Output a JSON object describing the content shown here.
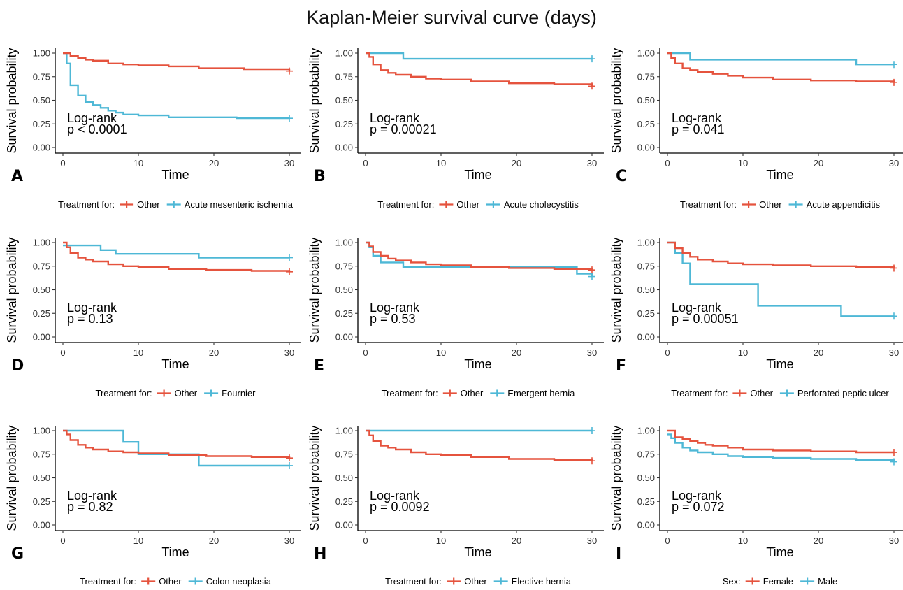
{
  "title": "Kaplan-Meier survival curve (days)",
  "colors": {
    "Other": "#E5533E",
    "secondary": "#4EB8D6",
    "axis": "#000000"
  },
  "chart_data": [
    {
      "type": "line",
      "panel": "A",
      "xlabel": "Time",
      "ylabel": "Survival probability",
      "xlim": [
        0,
        30
      ],
      "ylim": [
        0,
        1
      ],
      "xticks": [
        "0",
        "10",
        "20",
        "30"
      ],
      "yticks": [
        "0.00",
        "0.25",
        "0.50",
        "0.75",
        "1.00"
      ],
      "grid": false,
      "legend_position": "bottom",
      "legend_title": "Treatment for:",
      "annotation": [
        "Log-rank",
        "p < 0.0001"
      ],
      "series": [
        {
          "name": "Other",
          "color": "#E5533E",
          "x": [
            0,
            1,
            2,
            3,
            4,
            6,
            8,
            10,
            14,
            18,
            24,
            30
          ],
          "y": [
            1.0,
            0.97,
            0.95,
            0.93,
            0.92,
            0.89,
            0.88,
            0.87,
            0.86,
            0.84,
            0.83,
            0.81
          ]
        },
        {
          "name": "Acute mesenteric ischemia",
          "color": "#4EB8D6",
          "x": [
            0,
            0.5,
            1,
            2,
            3,
            4,
            5,
            6,
            7,
            8,
            10,
            14,
            23,
            30
          ],
          "y": [
            1.0,
            0.89,
            0.66,
            0.55,
            0.48,
            0.45,
            0.42,
            0.39,
            0.37,
            0.35,
            0.34,
            0.32,
            0.31,
            0.31
          ]
        }
      ]
    },
    {
      "type": "line",
      "panel": "B",
      "xlabel": "Time",
      "ylabel": "Survival probability",
      "xlim": [
        0,
        30
      ],
      "ylim": [
        0,
        1
      ],
      "xticks": [
        "0",
        "10",
        "20",
        "30"
      ],
      "yticks": [
        "0.00",
        "0.25",
        "0.50",
        "0.75",
        "1.00"
      ],
      "grid": false,
      "legend_position": "bottom",
      "legend_title": "Treatment for:",
      "annotation": [
        "Log-rank",
        "p = 0.00021"
      ],
      "series": [
        {
          "name": "Other",
          "color": "#E5533E",
          "x": [
            0,
            0.5,
            1,
            2,
            3,
            4,
            6,
            8,
            10,
            14,
            19,
            25,
            30
          ],
          "y": [
            1.0,
            0.96,
            0.88,
            0.82,
            0.79,
            0.77,
            0.75,
            0.73,
            0.72,
            0.7,
            0.68,
            0.67,
            0.65
          ]
        },
        {
          "name": "Acute cholecystitis",
          "color": "#4EB8D6",
          "x": [
            0,
            5,
            30
          ],
          "y": [
            1.0,
            0.94,
            0.94
          ]
        }
      ]
    },
    {
      "type": "line",
      "panel": "C",
      "xlabel": "Time",
      "ylabel": "Survival probability",
      "xlim": [
        0,
        30
      ],
      "ylim": [
        0,
        1
      ],
      "xticks": [
        "0",
        "10",
        "20",
        "30"
      ],
      "yticks": [
        "0.00",
        "0.25",
        "0.50",
        "0.75",
        "1.00"
      ],
      "grid": false,
      "legend_position": "bottom",
      "legend_title": "Treatment for:",
      "annotation": [
        "Log-rank",
        "p = 0.041"
      ],
      "series": [
        {
          "name": "Other",
          "color": "#E5533E",
          "x": [
            0,
            0.5,
            1,
            2,
            3,
            4,
            6,
            8,
            10,
            14,
            19,
            25,
            30
          ],
          "y": [
            1.0,
            0.95,
            0.89,
            0.84,
            0.82,
            0.8,
            0.78,
            0.76,
            0.74,
            0.72,
            0.71,
            0.7,
            0.69
          ]
        },
        {
          "name": "Acute appendicitis",
          "color": "#4EB8D6",
          "x": [
            0,
            3,
            25,
            30
          ],
          "y": [
            1.0,
            0.93,
            0.88,
            0.88
          ]
        }
      ]
    },
    {
      "type": "line",
      "panel": "D",
      "xlabel": "Time",
      "ylabel": "Survival probability",
      "xlim": [
        0,
        30
      ],
      "ylim": [
        0,
        1
      ],
      "xticks": [
        "0",
        "10",
        "20",
        "30"
      ],
      "yticks": [
        "0.00",
        "0.25",
        "0.50",
        "0.75",
        "1.00"
      ],
      "grid": false,
      "legend_position": "bottom",
      "legend_title": "Treatment for:",
      "annotation": [
        "Log-rank",
        "p = 0.13"
      ],
      "series": [
        {
          "name": "Other",
          "color": "#E5533E",
          "x": [
            0,
            0.5,
            1,
            2,
            3,
            4,
            6,
            8,
            10,
            14,
            19,
            25,
            30
          ],
          "y": [
            1.0,
            0.95,
            0.89,
            0.84,
            0.82,
            0.8,
            0.77,
            0.75,
            0.74,
            0.72,
            0.71,
            0.7,
            0.69
          ]
        },
        {
          "name": "Fournier",
          "color": "#4EB8D6",
          "x": [
            0,
            5,
            7,
            18,
            30
          ],
          "y": [
            0.97,
            0.92,
            0.88,
            0.84,
            0.84
          ]
        }
      ]
    },
    {
      "type": "line",
      "panel": "E",
      "xlabel": "Time",
      "ylabel": "Survival probability",
      "xlim": [
        0,
        30
      ],
      "ylim": [
        0,
        1
      ],
      "xticks": [
        "0",
        "10",
        "20",
        "30"
      ],
      "yticks": [
        "0.00",
        "0.25",
        "0.50",
        "0.75",
        "1.00"
      ],
      "grid": false,
      "legend_position": "bottom",
      "legend_title": "Treatment for:",
      "annotation": [
        "Log-rank",
        "p = 0.53"
      ],
      "series": [
        {
          "name": "Other",
          "color": "#E5533E",
          "x": [
            0,
            0.5,
            1,
            2,
            3,
            4,
            6,
            8,
            10,
            14,
            19,
            25,
            30
          ],
          "y": [
            1.0,
            0.96,
            0.9,
            0.86,
            0.83,
            0.81,
            0.79,
            0.77,
            0.76,
            0.74,
            0.73,
            0.72,
            0.71
          ]
        },
        {
          "name": "Emergent hernia",
          "color": "#4EB8D6",
          "x": [
            0,
            0.5,
            1,
            2,
            5,
            28,
            30
          ],
          "y": [
            1.0,
            0.95,
            0.86,
            0.79,
            0.74,
            0.67,
            0.64
          ]
        }
      ]
    },
    {
      "type": "line",
      "panel": "F",
      "xlabel": "Time",
      "ylabel": "Survival probability",
      "xlim": [
        0,
        30
      ],
      "ylim": [
        0,
        1
      ],
      "xticks": [
        "0",
        "10",
        "20",
        "30"
      ],
      "yticks": [
        "0.00",
        "0.25",
        "0.50",
        "0.75",
        "1.00"
      ],
      "grid": false,
      "legend_position": "bottom",
      "legend_title": "Treatment for:",
      "annotation": [
        "Log-rank",
        "p = 0.00051"
      ],
      "series": [
        {
          "name": "Other",
          "color": "#E5533E",
          "x": [
            0,
            1,
            2,
            3,
            4,
            6,
            8,
            10,
            14,
            19,
            25,
            30
          ],
          "y": [
            1.0,
            0.94,
            0.89,
            0.85,
            0.82,
            0.8,
            0.78,
            0.77,
            0.76,
            0.75,
            0.74,
            0.73
          ]
        },
        {
          "name": "Perforated peptic ulcer",
          "color": "#4EB8D6",
          "x": [
            0,
            1,
            2,
            3,
            12,
            23,
            30
          ],
          "y": [
            1.0,
            0.89,
            0.78,
            0.56,
            0.33,
            0.22,
            0.22
          ]
        }
      ]
    },
    {
      "type": "line",
      "panel": "G",
      "xlabel": "Time",
      "ylabel": "Survival probability",
      "xlim": [
        0,
        30
      ],
      "ylim": [
        0,
        1
      ],
      "xticks": [
        "0",
        "10",
        "20",
        "30"
      ],
      "yticks": [
        "0.00",
        "0.25",
        "0.50",
        "0.75",
        "1.00"
      ],
      "grid": false,
      "legend_position": "bottom",
      "legend_title": "Treatment for:",
      "annotation": [
        "Log-rank",
        "p = 0.82"
      ],
      "series": [
        {
          "name": "Other",
          "color": "#E5533E",
          "x": [
            0,
            0.5,
            1,
            2,
            3,
            4,
            6,
            8,
            10,
            14,
            19,
            25,
            30
          ],
          "y": [
            1.0,
            0.96,
            0.9,
            0.85,
            0.82,
            0.8,
            0.78,
            0.77,
            0.76,
            0.74,
            0.73,
            0.72,
            0.71
          ]
        },
        {
          "name": "Colon neoplasia",
          "color": "#4EB8D6",
          "x": [
            0,
            8,
            10,
            18,
            30
          ],
          "y": [
            1.0,
            0.88,
            0.75,
            0.63,
            0.63
          ]
        }
      ]
    },
    {
      "type": "line",
      "panel": "H",
      "xlabel": "Time",
      "ylabel": "Survival probability",
      "xlim": [
        0,
        30
      ],
      "ylim": [
        0,
        1
      ],
      "xticks": [
        "0",
        "10",
        "20",
        "30"
      ],
      "yticks": [
        "0.00",
        "0.25",
        "0.50",
        "0.75",
        "1.00"
      ],
      "grid": false,
      "legend_position": "bottom",
      "legend_title": "Treatment for:",
      "annotation": [
        "Log-rank",
        "p = 0.0092"
      ],
      "series": [
        {
          "name": "Other",
          "color": "#E5533E",
          "x": [
            0,
            0.5,
            1,
            2,
            3,
            4,
            6,
            8,
            10,
            14,
            19,
            25,
            30
          ],
          "y": [
            1.0,
            0.95,
            0.89,
            0.84,
            0.82,
            0.8,
            0.77,
            0.75,
            0.74,
            0.72,
            0.7,
            0.69,
            0.68
          ]
        },
        {
          "name": "Elective hernia",
          "color": "#4EB8D6",
          "x": [
            0,
            30
          ],
          "y": [
            1.0,
            1.0
          ]
        }
      ]
    },
    {
      "type": "line",
      "panel": "I",
      "xlabel": "Time",
      "ylabel": "Survival probability",
      "xlim": [
        0,
        30
      ],
      "ylim": [
        0,
        1
      ],
      "xticks": [
        "0",
        "10",
        "20",
        "30"
      ],
      "yticks": [
        "0.00",
        "0.25",
        "0.50",
        "0.75",
        "1.00"
      ],
      "grid": false,
      "legend_position": "bottom",
      "legend_title": "Sex:",
      "annotation": [
        "Log-rank",
        "p = 0.072"
      ],
      "series": [
        {
          "name": "Female",
          "color": "#E5533E",
          "x": [
            0,
            1,
            2,
            3,
            4,
            5,
            6,
            8,
            10,
            14,
            19,
            25,
            30
          ],
          "y": [
            1.0,
            0.93,
            0.91,
            0.89,
            0.87,
            0.85,
            0.84,
            0.82,
            0.8,
            0.79,
            0.78,
            0.77,
            0.77
          ]
        },
        {
          "name": "Male",
          "color": "#4EB8D6",
          "x": [
            0,
            0.5,
            1,
            2,
            3,
            4,
            6,
            8,
            10,
            14,
            19,
            25,
            30
          ],
          "y": [
            0.96,
            0.92,
            0.87,
            0.82,
            0.79,
            0.77,
            0.75,
            0.73,
            0.72,
            0.71,
            0.7,
            0.69,
            0.67
          ]
        }
      ]
    }
  ]
}
